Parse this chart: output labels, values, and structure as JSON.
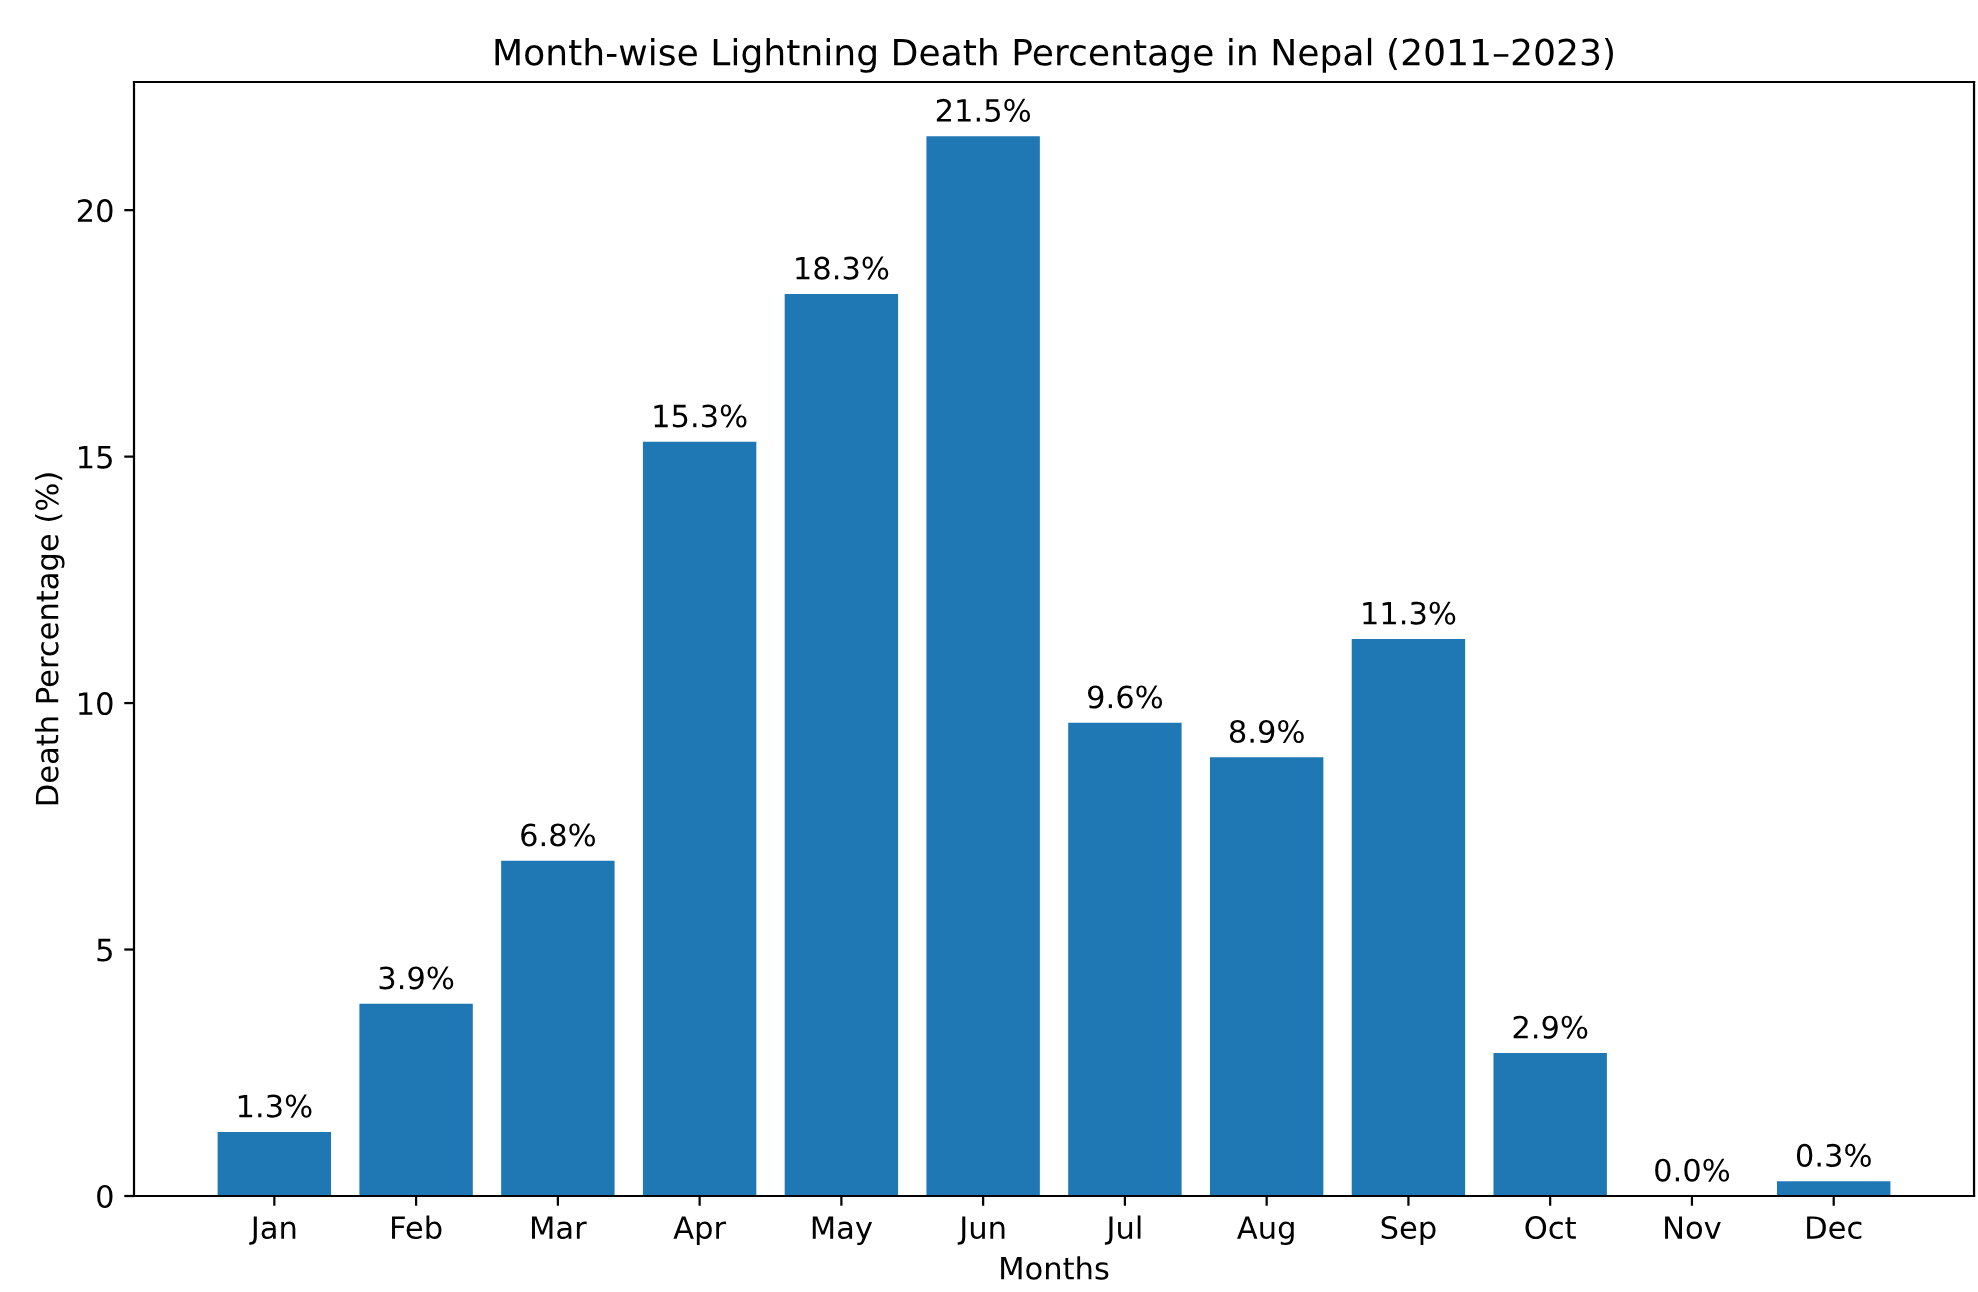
{
  "chart_data": {
    "type": "bar",
    "title": "Month-wise Lightning Death Percentage in Nepal (2011–2023)",
    "xlabel": "Months",
    "ylabel": "Death Percentage (%)",
    "categories": [
      "Jan",
      "Feb",
      "Mar",
      "Apr",
      "May",
      "Jun",
      "Jul",
      "Aug",
      "Sep",
      "Oct",
      "Nov",
      "Dec"
    ],
    "values": [
      1.3,
      3.9,
      6.8,
      15.3,
      18.3,
      21.5,
      9.6,
      8.9,
      11.3,
      2.9,
      0.0,
      0.3
    ],
    "value_labels": [
      "1.3%",
      "3.9%",
      "6.8%",
      "15.3%",
      "18.3%",
      "21.5%",
      "9.6%",
      "8.9%",
      "11.3%",
      "2.9%",
      "0.0%",
      "0.3%"
    ],
    "color": "#1f77b4",
    "ylim": [
      0,
      22.6
    ],
    "yticks": [
      0,
      5,
      10,
      15,
      20
    ],
    "grid": false
  }
}
